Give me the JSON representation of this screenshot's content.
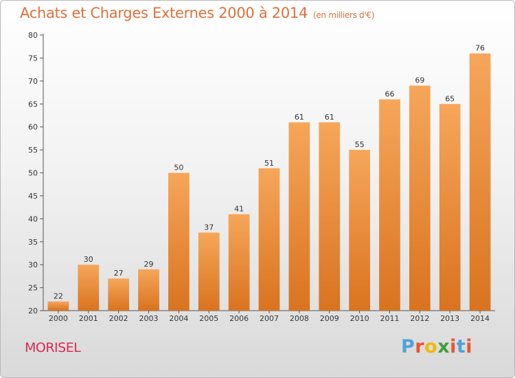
{
  "header": {
    "title": "Achats et Charges Externes 2000 à 2014",
    "subtitle": "(en milliers d'€)"
  },
  "footer": {
    "place": "MORISEL",
    "logo": "Proxiti"
  },
  "colors": {
    "title": "#e0703a",
    "place": "#d92a55",
    "bar_top": "#f6a65a",
    "bar_bottom": "#d9731f",
    "logo_letters": [
      "#4fa3d9",
      "#e8542f",
      "#f0b90b",
      "#3e9e3e",
      "#e8542f",
      "#4fa3d9",
      "#e8542f"
    ]
  },
  "chart_data": {
    "type": "bar",
    "categories": [
      "2000",
      "2001",
      "2002",
      "2003",
      "2004",
      "2005",
      "2006",
      "2007",
      "2008",
      "2009",
      "2010",
      "2011",
      "2012",
      "2013",
      "2014"
    ],
    "values": [
      22,
      30,
      27,
      29,
      50,
      37,
      41,
      51,
      61,
      61,
      55,
      66,
      69,
      65,
      76
    ],
    "title": "Achats et Charges Externes 2000 à 2014",
    "ylim": [
      20,
      80
    ],
    "yticks": [
      20,
      25,
      30,
      35,
      40,
      45,
      50,
      55,
      60,
      65,
      70,
      75,
      80
    ],
    "grid": false,
    "legend": "none"
  }
}
